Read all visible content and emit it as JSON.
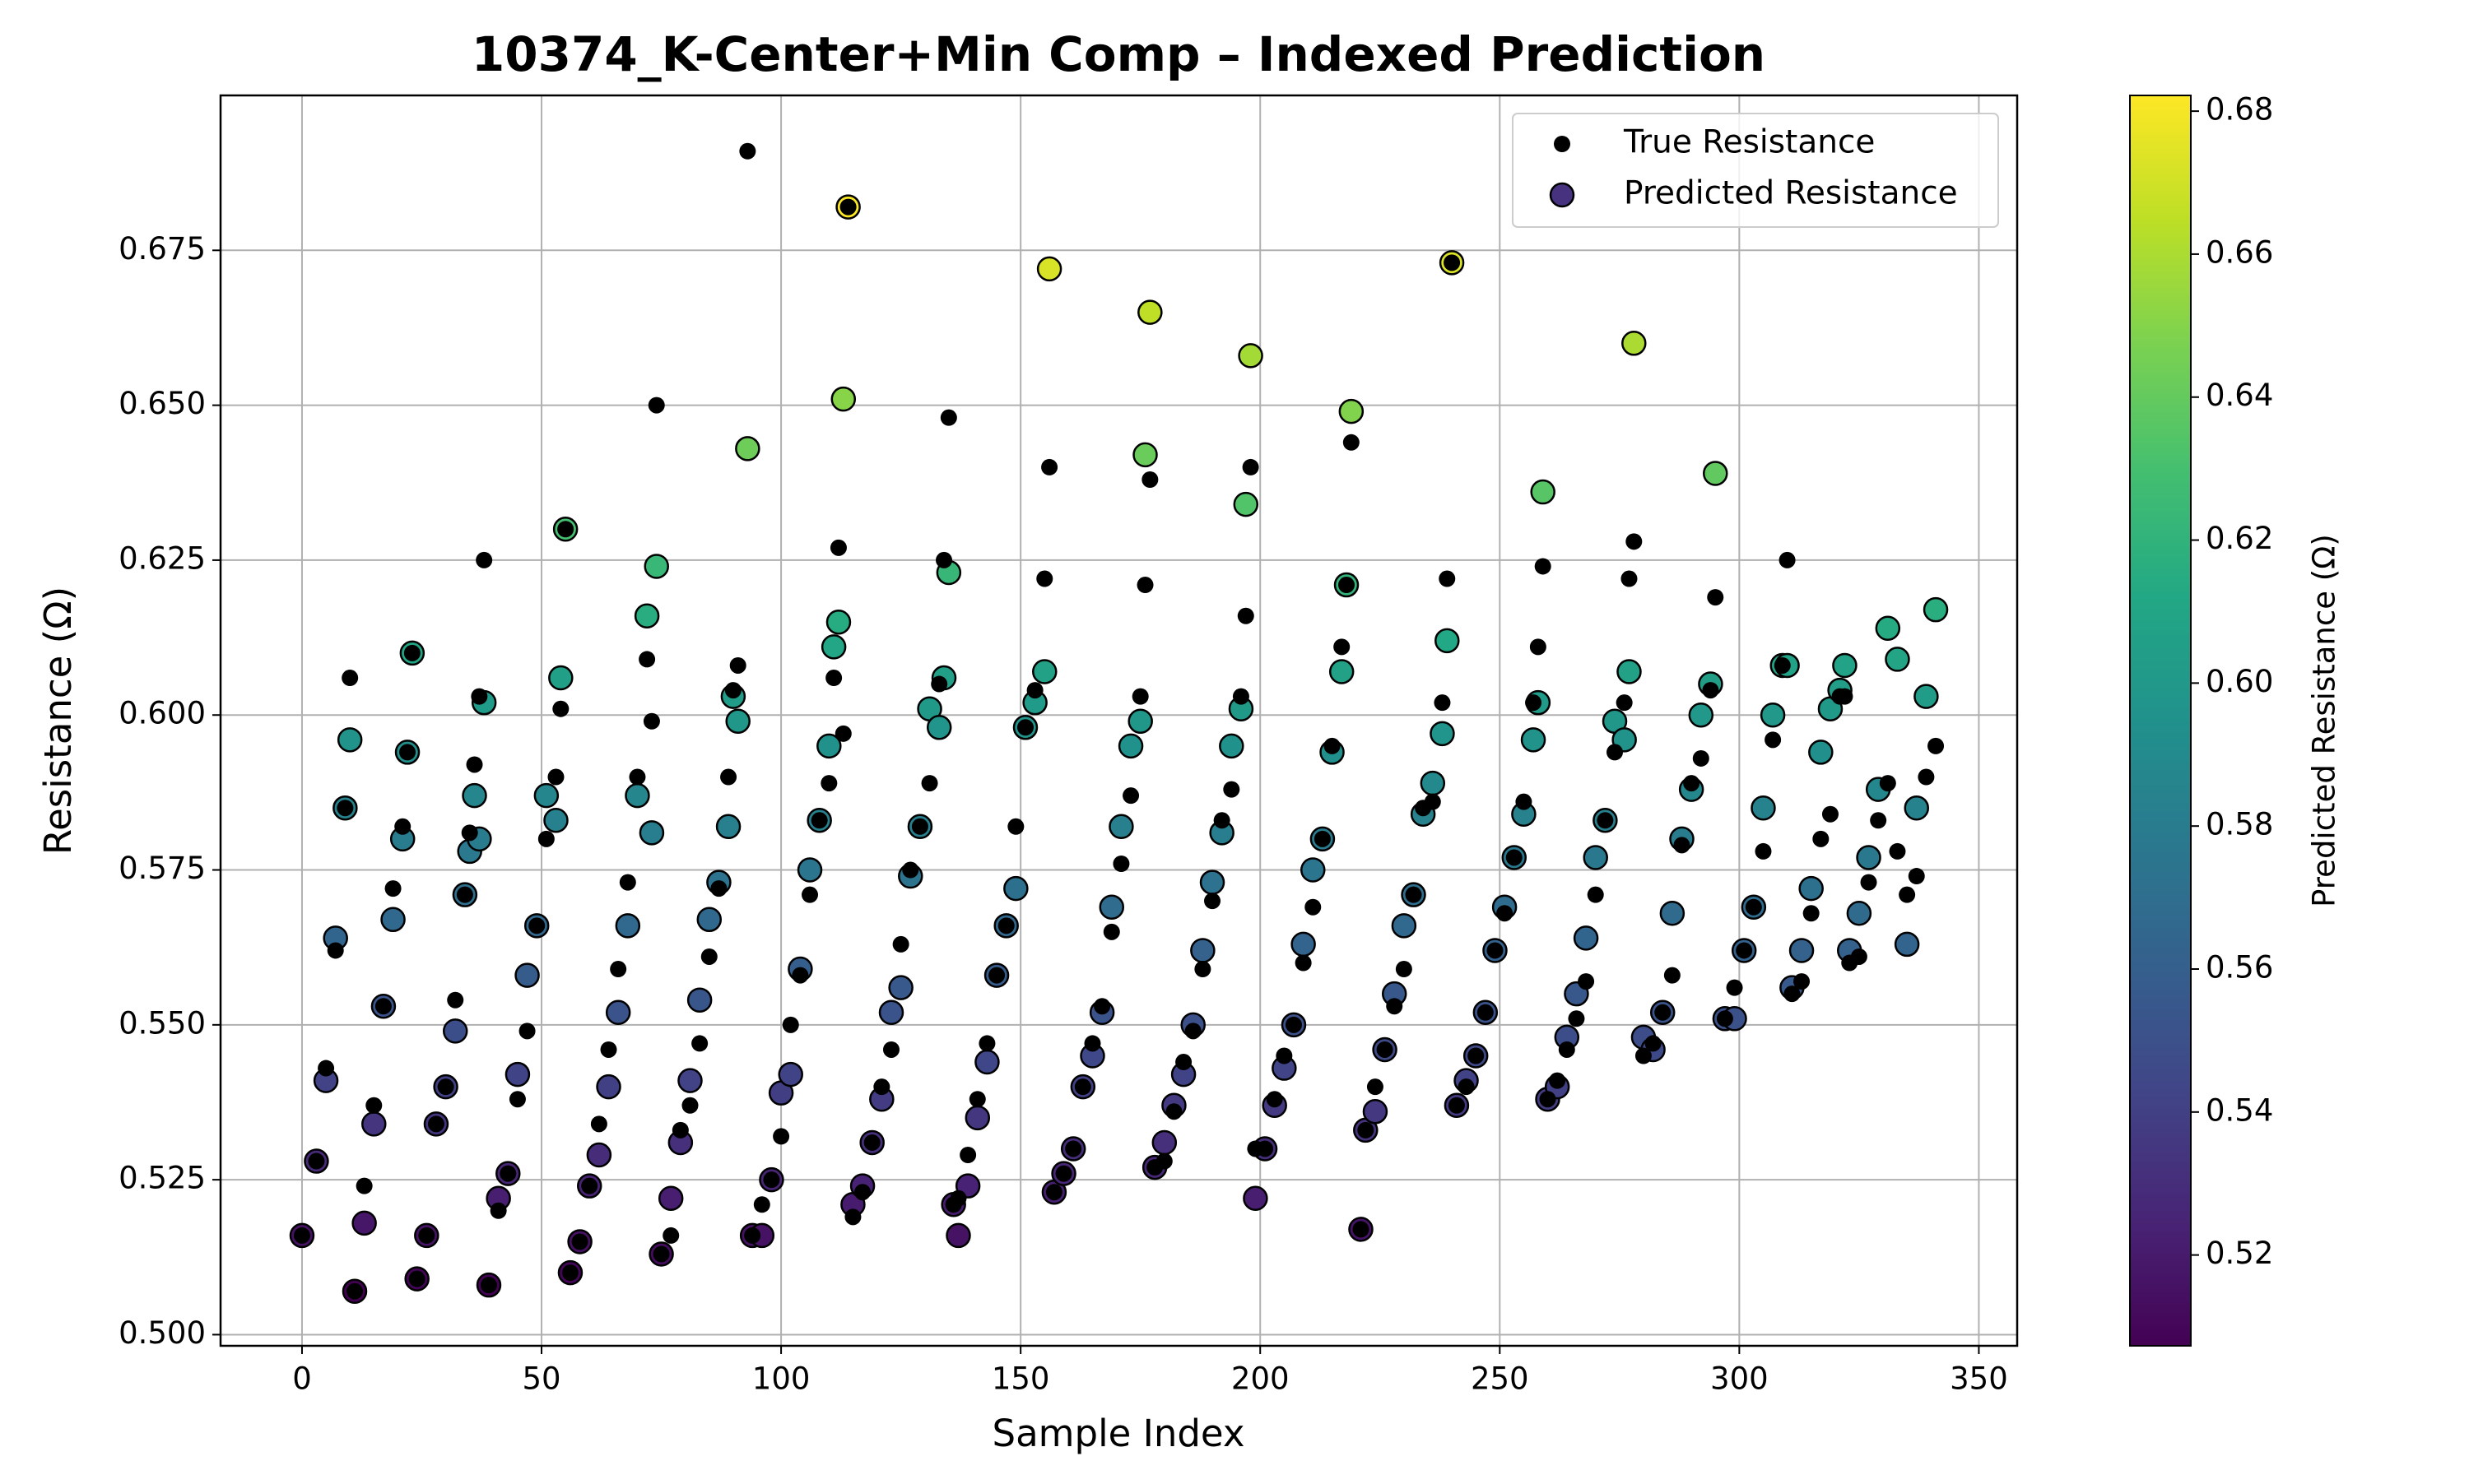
{
  "chart_data": {
    "type": "scatter",
    "title": "10374_K-Center+Min Comp – Indexed Prediction",
    "x_label": "Sample Index",
    "y_label": "Resistance (Ω)",
    "xlim": [
      -17,
      358
    ],
    "ylim": [
      0.4982,
      0.7
    ],
    "xticks": [
      0,
      50,
      100,
      150,
      200,
      250,
      300,
      350
    ],
    "yticks": [
      {
        "value": 0.5,
        "label": "0.500"
      },
      0.525,
      {
        "value": 0.55,
        "label": "0.550"
      },
      0.575,
      {
        "value": 0.6,
        "label": "0.600"
      },
      0.625,
      {
        "value": 0.65,
        "label": "0.650"
      },
      0.675
    ],
    "grid": true,
    "legend": "upper right",
    "colormap": "viridis",
    "colorbar_label": "Predicted Resistance (Ω)",
    "clim": [
      0.5073,
      0.6822
    ],
    "colorbar_ticks": [
      0.52,
      0.54,
      0.56,
      0.58,
      {
        "value": 0.6,
        "label": "0.60"
      },
      0.62,
      0.64,
      0.66,
      0.68
    ],
    "x": [
      0,
      3,
      5,
      7,
      9,
      10,
      11,
      13,
      15,
      17,
      19,
      21,
      22,
      23,
      24,
      26,
      28,
      30,
      32,
      34,
      35,
      36,
      37,
      38,
      39,
      41,
      43,
      45,
      47,
      49,
      51,
      53,
      54,
      55,
      56,
      58,
      60,
      62,
      64,
      66,
      68,
      70,
      72,
      73,
      74,
      75,
      77,
      79,
      81,
      83,
      85,
      87,
      89,
      90,
      91,
      93,
      94,
      96,
      98,
      100,
      102,
      104,
      106,
      108,
      110,
      111,
      112,
      113,
      114,
      115,
      117,
      119,
      121,
      123,
      125,
      127,
      129,
      131,
      133,
      134,
      135,
      136,
      137,
      139,
      141,
      143,
      145,
      147,
      149,
      151,
      153,
      155,
      156,
      157,
      159,
      161,
      163,
      165,
      167,
      169,
      171,
      173,
      175,
      176,
      177,
      178,
      180,
      182,
      184,
      186,
      188,
      190,
      192,
      194,
      196,
      197,
      198,
      199,
      201,
      203,
      205,
      207,
      209,
      211,
      213,
      215,
      217,
      218,
      219,
      221,
      222,
      224,
      226,
      228,
      230,
      232,
      234,
      236,
      238,
      239,
      240,
      241,
      243,
      245,
      247,
      249,
      251,
      253,
      255,
      257,
      258,
      259,
      260,
      262,
      264,
      266,
      268,
      270,
      272,
      274,
      276,
      277,
      278,
      280,
      282,
      284,
      286,
      288,
      290,
      292,
      294,
      295,
      297,
      299,
      301,
      303,
      305,
      307,
      309,
      310,
      311,
      313,
      315,
      317,
      319,
      321,
      322,
      323,
      325,
      327,
      329,
      331,
      333,
      335,
      337,
      339,
      341
    ],
    "series": [
      {
        "name": "True Resistance",
        "color": "#000000",
        "values": [
          0.516,
          0.528,
          0.543,
          0.562,
          0.585,
          0.606,
          0.507,
          0.524,
          0.537,
          0.553,
          0.572,
          0.582,
          0.594,
          0.61,
          0.509,
          0.516,
          0.534,
          0.54,
          0.554,
          0.571,
          0.581,
          0.592,
          0.603,
          0.625,
          0.508,
          0.52,
          0.526,
          0.538,
          0.549,
          0.566,
          0.58,
          0.59,
          0.601,
          0.63,
          0.51,
          0.515,
          0.524,
          0.534,
          0.546,
          0.559,
          0.573,
          0.59,
          0.609,
          0.599,
          0.65,
          0.513,
          0.516,
          0.533,
          0.537,
          0.547,
          0.561,
          0.572,
          0.59,
          0.604,
          0.608,
          0.691,
          0.516,
          0.521,
          0.525,
          0.532,
          0.55,
          0.558,
          0.571,
          0.583,
          0.589,
          0.606,
          0.627,
          0.597,
          0.682,
          0.519,
          0.523,
          0.531,
          0.54,
          0.546,
          0.563,
          0.575,
          0.582,
          0.589,
          0.605,
          0.625,
          0.648,
          0.521,
          0.522,
          0.529,
          0.538,
          0.547,
          0.558,
          0.566,
          0.582,
          0.598,
          0.604,
          0.622,
          0.64,
          0.523,
          0.526,
          0.53,
          0.54,
          0.547,
          0.553,
          0.565,
          0.576,
          0.587,
          0.603,
          0.621,
          0.638,
          0.527,
          0.528,
          0.536,
          0.544,
          0.549,
          0.559,
          0.57,
          0.583,
          0.588,
          0.603,
          0.616,
          0.64,
          0.53,
          0.53,
          0.538,
          0.545,
          0.55,
          0.56,
          0.569,
          0.58,
          0.595,
          0.611,
          0.621,
          0.644,
          0.517,
          0.533,
          0.54,
          0.546,
          0.553,
          0.559,
          0.571,
          0.585,
          0.586,
          0.602,
          0.622,
          0.673,
          0.537,
          0.54,
          0.545,
          0.552,
          0.562,
          0.568,
          0.577,
          0.586,
          0.602,
          0.611,
          0.624,
          0.538,
          0.541,
          0.546,
          0.551,
          0.557,
          0.571,
          0.583,
          0.594,
          0.602,
          0.622,
          0.628,
          0.545,
          0.547,
          0.552,
          0.558,
          0.579,
          0.589,
          0.593,
          0.604,
          0.619,
          0.551,
          0.556,
          0.562,
          0.569,
          0.578,
          0.596,
          0.608,
          0.625,
          0.555,
          0.557,
          0.568,
          0.58,
          0.584,
          0.603,
          0.603,
          0.56,
          0.561,
          0.573,
          0.583,
          0.589,
          0.578,
          0.571,
          0.574,
          0.59,
          0.595
        ]
      },
      {
        "name": "Predicted Resistance",
        "color": "#46327e",
        "values": [
          0.516,
          0.528,
          0.541,
          0.564,
          0.585,
          0.596,
          0.507,
          0.518,
          0.534,
          0.553,
          0.567,
          0.58,
          0.594,
          0.61,
          0.509,
          0.516,
          0.534,
          0.54,
          0.549,
          0.571,
          0.578,
          0.587,
          0.58,
          0.602,
          0.508,
          0.522,
          0.526,
          0.542,
          0.558,
          0.566,
          0.587,
          0.583,
          0.606,
          0.63,
          0.51,
          0.515,
          0.524,
          0.529,
          0.54,
          0.552,
          0.566,
          0.587,
          0.616,
          0.581,
          0.624,
          0.513,
          0.522,
          0.531,
          0.541,
          0.554,
          0.567,
          0.573,
          0.582,
          0.603,
          0.599,
          0.643,
          0.516,
          0.516,
          0.525,
          0.539,
          0.542,
          0.559,
          0.575,
          0.583,
          0.595,
          0.611,
          0.615,
          0.651,
          0.682,
          0.521,
          0.524,
          0.531,
          0.538,
          0.552,
          0.556,
          0.574,
          0.582,
          0.601,
          0.598,
          0.606,
          0.623,
          0.521,
          0.516,
          0.524,
          0.535,
          0.544,
          0.558,
          0.566,
          0.572,
          0.598,
          0.602,
          0.607,
          0.672,
          0.523,
          0.526,
          0.53,
          0.54,
          0.545,
          0.552,
          0.569,
          0.582,
          0.595,
          0.599,
          0.642,
          0.665,
          0.527,
          0.531,
          0.537,
          0.542,
          0.55,
          0.562,
          0.573,
          0.581,
          0.595,
          0.601,
          0.634,
          0.658,
          0.522,
          0.53,
          0.537,
          0.543,
          0.55,
          0.563,
          0.575,
          0.58,
          0.594,
          0.607,
          0.621,
          0.649,
          0.517,
          0.533,
          0.536,
          0.546,
          0.555,
          0.566,
          0.571,
          0.584,
          0.589,
          0.597,
          0.612,
          0.673,
          0.537,
          0.541,
          0.545,
          0.552,
          0.562,
          0.569,
          0.577,
          0.584,
          0.596,
          0.602,
          0.636,
          0.538,
          0.54,
          0.548,
          0.555,
          0.564,
          0.577,
          0.583,
          0.599,
          0.596,
          0.607,
          0.66,
          0.548,
          0.546,
          0.552,
          0.568,
          0.58,
          0.588,
          0.6,
          0.605,
          0.639,
          0.551,
          0.551,
          0.562,
          0.569,
          0.585,
          0.6,
          0.608,
          0.608,
          0.556,
          0.562,
          0.572,
          0.594,
          0.601,
          0.604,
          0.608,
          0.562,
          0.568,
          0.577,
          0.588,
          0.614,
          0.609,
          0.563,
          0.585,
          0.603,
          0.617
        ]
      }
    ]
  }
}
